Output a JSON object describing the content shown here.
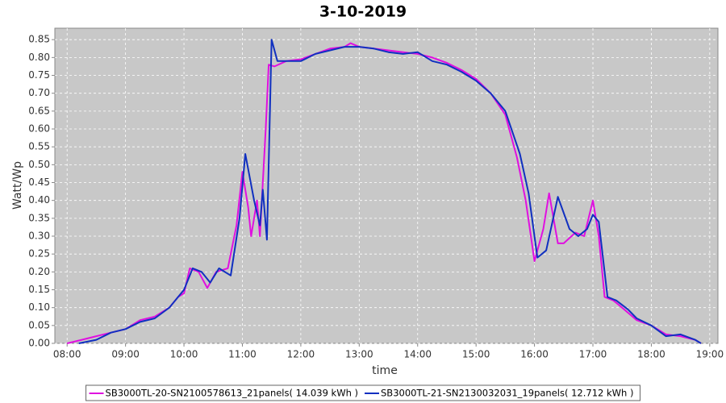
{
  "chart_data": {
    "type": "line",
    "title": "3-10-2019",
    "x_label": "time",
    "y_label": "Watt/Wp",
    "xlim": [
      7.79,
      19.14
    ],
    "ylim": [
      0,
      0.882
    ],
    "grid": true,
    "legend": "bottom",
    "xticks": [
      {
        "value": 8,
        "label": "08:00"
      },
      {
        "value": 9,
        "label": "09:00"
      },
      {
        "value": 10,
        "label": "10:00"
      },
      {
        "value": 11,
        "label": "11:00"
      },
      {
        "value": 12,
        "label": "12:00"
      },
      {
        "value": 13,
        "label": "13:00"
      },
      {
        "value": 14,
        "label": "14:00"
      },
      {
        "value": 15,
        "label": "15:00"
      },
      {
        "value": 16,
        "label": "16:00"
      },
      {
        "value": 17,
        "label": "17:00"
      },
      {
        "value": 18,
        "label": "18:00"
      },
      {
        "value": 19,
        "label": "19:00"
      }
    ],
    "yticks": [
      {
        "value": 0,
        "label": "0.00"
      },
      0.05,
      {
        "value": 0.1,
        "label": "0.10"
      },
      0.15,
      {
        "value": 0.2,
        "label": "0.20"
      },
      0.25,
      {
        "value": 0.3,
        "label": "0.30"
      },
      0.35,
      {
        "value": 0.4,
        "label": "0.40"
      },
      0.45,
      {
        "value": 0.5,
        "label": "0.50"
      },
      0.55,
      {
        "value": 0.6,
        "label": "0.60"
      },
      0.65,
      {
        "value": 0.7,
        "label": "0.70"
      },
      0.75,
      {
        "value": 0.8,
        "label": "0.80"
      },
      0.85
    ],
    "series": [
      {
        "name": "SB3000TL-20-SN2100578613_21panels( 14.039 kWh )",
        "color": "#e010e0",
        "x": [
          8.0,
          8.25,
          8.5,
          8.75,
          9.0,
          9.25,
          9.5,
          9.75,
          9.9,
          10.0,
          10.1,
          10.25,
          10.4,
          10.55,
          10.75,
          10.9,
          11.0,
          11.1,
          11.15,
          11.25,
          11.3,
          11.4,
          11.45,
          11.55,
          11.75,
          12.0,
          12.25,
          12.5,
          12.75,
          12.85,
          13.0,
          13.25,
          13.5,
          13.75,
          14.0,
          14.25,
          14.5,
          14.75,
          15.0,
          15.25,
          15.5,
          15.7,
          15.85,
          16.0,
          16.15,
          16.25,
          16.4,
          16.5,
          16.7,
          16.85,
          17.0,
          17.1,
          17.2,
          17.35,
          17.5,
          17.75,
          18.0,
          18.25,
          18.5,
          18.75,
          18.85
        ],
        "values": [
          0.0,
          0.01,
          0.02,
          0.03,
          0.04,
          0.065,
          0.075,
          0.1,
          0.13,
          0.14,
          0.21,
          0.2,
          0.155,
          0.2,
          0.21,
          0.33,
          0.48,
          0.38,
          0.3,
          0.4,
          0.3,
          0.6,
          0.78,
          0.775,
          0.79,
          0.795,
          0.81,
          0.825,
          0.83,
          0.84,
          0.83,
          0.825,
          0.82,
          0.815,
          0.81,
          0.8,
          0.785,
          0.765,
          0.74,
          0.7,
          0.64,
          0.52,
          0.4,
          0.23,
          0.32,
          0.42,
          0.28,
          0.28,
          0.31,
          0.3,
          0.4,
          0.3,
          0.13,
          0.12,
          0.1,
          0.065,
          0.05,
          0.025,
          0.02,
          0.01,
          0.0
        ]
      },
      {
        "name": "SB3000TL-21-SN2130032031_19panels( 12.712 kWh )",
        "color": "#1030c0",
        "x": [
          8.2,
          8.5,
          8.75,
          9.0,
          9.25,
          9.5,
          9.75,
          10.0,
          10.15,
          10.3,
          10.45,
          10.6,
          10.8,
          10.95,
          11.05,
          11.2,
          11.3,
          11.35,
          11.42,
          11.5,
          11.6,
          11.75,
          12.0,
          12.25,
          12.5,
          12.75,
          13.0,
          13.25,
          13.5,
          13.75,
          14.0,
          14.25,
          14.5,
          14.75,
          15.0,
          15.25,
          15.5,
          15.75,
          15.9,
          16.05,
          16.2,
          16.4,
          16.6,
          16.75,
          16.9,
          17.0,
          17.1,
          17.25,
          17.4,
          17.6,
          17.75,
          18.0,
          18.25,
          18.5,
          18.75,
          18.85
        ],
        "values": [
          0.0,
          0.01,
          0.03,
          0.04,
          0.06,
          0.07,
          0.1,
          0.15,
          0.21,
          0.2,
          0.17,
          0.21,
          0.19,
          0.35,
          0.53,
          0.4,
          0.33,
          0.43,
          0.29,
          0.85,
          0.79,
          0.79,
          0.79,
          0.81,
          0.82,
          0.83,
          0.83,
          0.825,
          0.815,
          0.81,
          0.815,
          0.79,
          0.78,
          0.76,
          0.735,
          0.7,
          0.65,
          0.53,
          0.42,
          0.24,
          0.26,
          0.41,
          0.32,
          0.3,
          0.32,
          0.36,
          0.34,
          0.13,
          0.12,
          0.095,
          0.07,
          0.05,
          0.02,
          0.025,
          0.01,
          0.0
        ]
      }
    ]
  }
}
